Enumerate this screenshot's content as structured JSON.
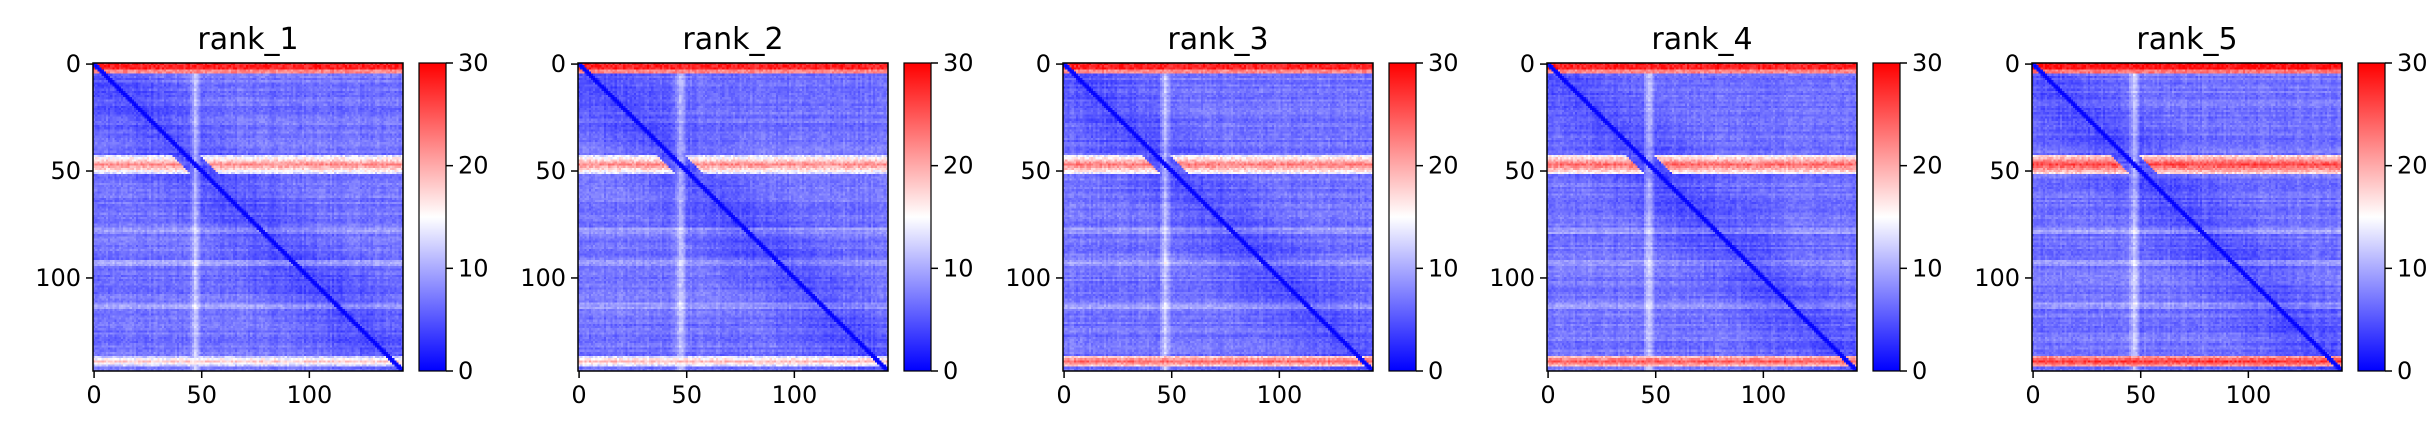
{
  "chart_data": {
    "type": "heatmap",
    "colormap": {
      "name": "bwr",
      "low": "#0000ff",
      "mid": "#ffffff",
      "high": "#ff0000",
      "vmin": 0,
      "vmax": 30,
      "ticks": [
        "0",
        "10",
        "20",
        "30"
      ]
    },
    "matrix_size": 144,
    "x_ticks": [
      {
        "value": 0,
        "label": "0"
      },
      {
        "value": 50,
        "label": "50"
      },
      {
        "value": 100,
        "label": "100"
      }
    ],
    "y_ticks": [
      {
        "value": 0,
        "label": "0"
      },
      {
        "value": 50,
        "label": "50"
      },
      {
        "value": 100,
        "label": "100"
      }
    ],
    "panels": [
      {
        "title": "rank_1",
        "top_band": 28,
        "mid_band": 22,
        "bottom_band": 18,
        "mid_row": 47
      },
      {
        "title": "rank_2",
        "top_band": 28,
        "mid_band": 22,
        "bottom_band": 19,
        "mid_row": 47
      },
      {
        "title": "rank_3",
        "top_band": 28,
        "mid_band": 23,
        "bottom_band": 24,
        "mid_row": 47
      },
      {
        "title": "rank_4",
        "top_band": 28,
        "mid_band": 24,
        "bottom_band": 25,
        "mid_row": 47
      },
      {
        "title": "rank_5",
        "top_band": 29,
        "mid_band": 26,
        "bottom_band": 27,
        "mid_row": 47
      }
    ]
  }
}
